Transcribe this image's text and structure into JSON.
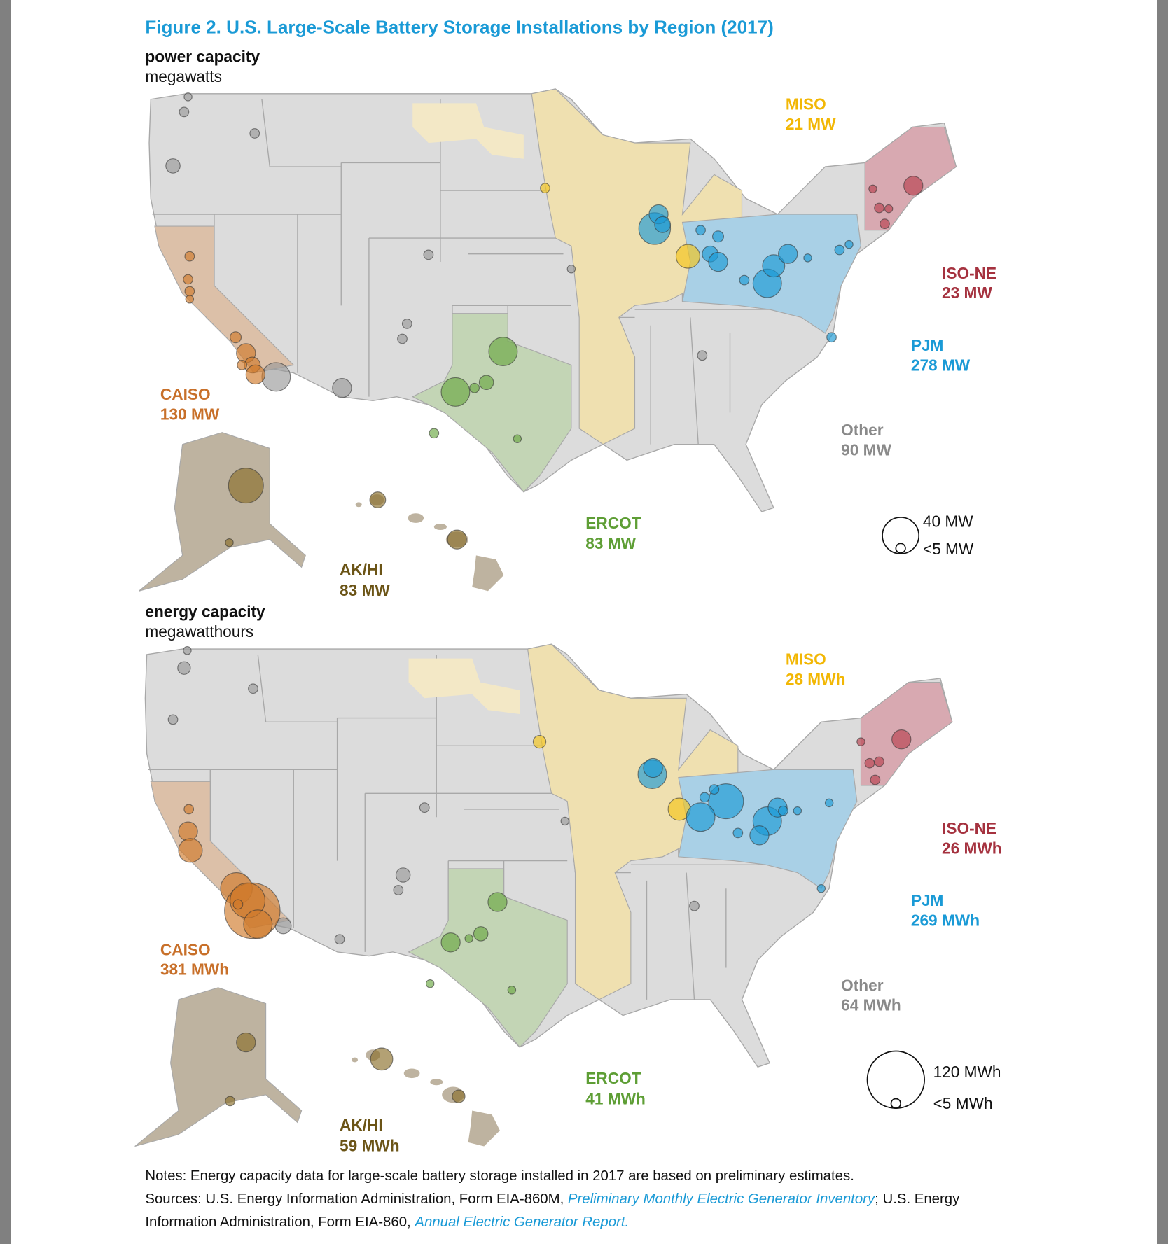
{
  "title": "Figure 2. U.S. Large-Scale Battery Storage Installations by Region (2017)",
  "maps": [
    {
      "heading": "power capacity",
      "unit": "megawatts",
      "regions": {
        "miso": {
          "name": "MISO",
          "value": "21 MW"
        },
        "iso_ne": {
          "name": "ISO-NE",
          "value": "23 MW"
        },
        "pjm": {
          "name": "PJM",
          "value": "278 MW"
        },
        "caiso": {
          "name": "CAISO",
          "value": "130 MW"
        },
        "other": {
          "name": "Other",
          "value": "90 MW"
        },
        "ercot": {
          "name": "ERCOT",
          "value": "83 MW"
        },
        "akhi": {
          "name": "AK/HI",
          "value": "83 MW"
        }
      },
      "legend": {
        "large": "40 MW",
        "small": "<5 MW"
      }
    },
    {
      "heading": "energy capacity",
      "unit": "megawatthours",
      "regions": {
        "miso": {
          "name": "MISO",
          "value": "28 MWh"
        },
        "iso_ne": {
          "name": "ISO-NE",
          "value": "26 MWh"
        },
        "pjm": {
          "name": "PJM",
          "value": "269 MWh"
        },
        "caiso": {
          "name": "CAISO",
          "value": "381 MWh"
        },
        "other": {
          "name": "Other",
          "value": "64 MWh"
        },
        "ercot": {
          "name": "ERCOT",
          "value": "41 MWh"
        },
        "akhi": {
          "name": "AK/HI",
          "value": "59 MWh"
        }
      },
      "legend": {
        "large": "120 MWh",
        "small": "<5 MWh"
      }
    }
  ],
  "notes": {
    "note": "Notes: Energy capacity data for large-scale battery storage installed in 2017 are based on preliminary estimates.",
    "sources_prefix": "Sources: U.S. Energy Information Administration, Form EIA-860M, ",
    "link1": "Preliminary Monthly Electric Generator Inventory",
    "sources_mid": "; U.S. Energy",
    "line3_prefix": "Information Administration, Form EIA-860, ",
    "link2": "Annual Electric Generator Report."
  },
  "colors": {
    "title": "#1a9ad6",
    "miso": "#f2b705",
    "iso_ne": "#a5323f",
    "pjm": "#1a9ad6",
    "caiso": "#c8702a",
    "other": "#8a8a8a",
    "ercot": "#5e9e35",
    "akhi": "#6b5416"
  }
}
